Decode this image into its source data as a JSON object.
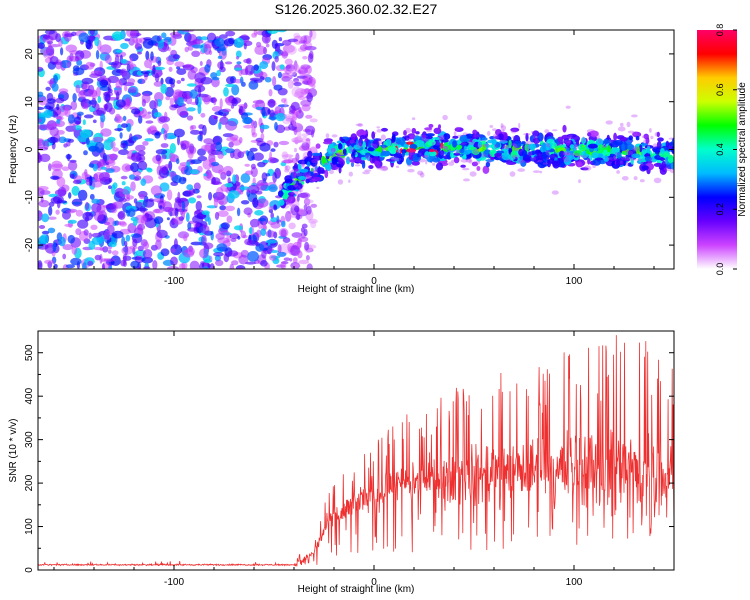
{
  "chart_data": [
    {
      "type": "heatmap",
      "title": "S126.2025.360.02.32.E27",
      "xlabel": "Height of straight line (km)",
      "ylabel": "Frequency (Hz)",
      "xlim": [
        -168,
        150
      ],
      "ylim": [
        -25,
        25
      ],
      "xticks": [
        -100,
        0,
        100
      ],
      "xtick_labels": [
        "-100",
        "0",
        "100"
      ],
      "yticks": [
        -20,
        -10,
        0,
        10,
        20
      ],
      "ytick_labels": [
        "-20",
        "-10",
        "0",
        "10",
        "20"
      ],
      "colorbar": {
        "label": "Normalized spectral amplitude",
        "range": [
          0.0,
          0.8
        ],
        "ticks": [
          0.0,
          0.2,
          0.4,
          0.6,
          0.8
        ],
        "tick_labels": [
          "0.0",
          "0.2",
          "0.4",
          "0.6",
          "0.8"
        ],
        "colors": [
          "#ffffff",
          "#cc44ff",
          "#6600ff",
          "#0000ff",
          "#00bbff",
          "#00ffcc",
          "#00ff00",
          "#ccff00",
          "#ffcc00",
          "#ff0000",
          "#ff0066"
        ]
      },
      "description_series": {
        "noise_region_x": [
          -168,
          -40
        ],
        "signal_band_center_freq": [
          {
            "x": -47,
            "freq": -10
          },
          {
            "x": -35,
            "freq": -5
          },
          {
            "x": -20,
            "freq": -1
          },
          {
            "x": 0,
            "freq": 0
          },
          {
            "x": 25,
            "freq": 0.5
          },
          {
            "x": 60,
            "freq": 0
          },
          {
            "x": 100,
            "freq": 0
          },
          {
            "x": 150,
            "freq": -1
          }
        ],
        "peak_amplitude": 0.8
      }
    },
    {
      "type": "line",
      "title": "",
      "xlabel": "Height of straight line (km)",
      "ylabel": "SNR (10 * v/v)",
      "xlim": [
        -168,
        150
      ],
      "ylim": [
        0,
        550
      ],
      "xticks": [
        -100,
        0,
        100
      ],
      "xtick_labels": [
        "-100",
        "0",
        "100"
      ],
      "yticks": [
        0,
        100,
        200,
        300,
        400,
        500
      ],
      "ytick_labels": [
        "0",
        "100",
        "200",
        "300",
        "400",
        "500"
      ],
      "color": "#ee3030",
      "envelope": [
        {
          "x": -168,
          "mean": 12,
          "max": 18
        },
        {
          "x": -40,
          "mean": 12,
          "max": 25
        },
        {
          "x": -30,
          "mean": 40,
          "max": 70
        },
        {
          "x": -23,
          "mean": 110,
          "max": 180
        },
        {
          "x": -10,
          "mean": 150,
          "max": 260
        },
        {
          "x": 0,
          "mean": 175,
          "max": 310
        },
        {
          "x": 20,
          "mean": 200,
          "max": 370
        },
        {
          "x": 40,
          "mean": 215,
          "max": 420
        },
        {
          "x": 60,
          "mean": 225,
          "max": 450
        },
        {
          "x": 80,
          "mean": 230,
          "max": 480
        },
        {
          "x": 100,
          "mean": 235,
          "max": 510
        },
        {
          "x": 120,
          "mean": 235,
          "max": 550
        },
        {
          "x": 150,
          "mean": 230,
          "max": 510
        }
      ]
    }
  ]
}
